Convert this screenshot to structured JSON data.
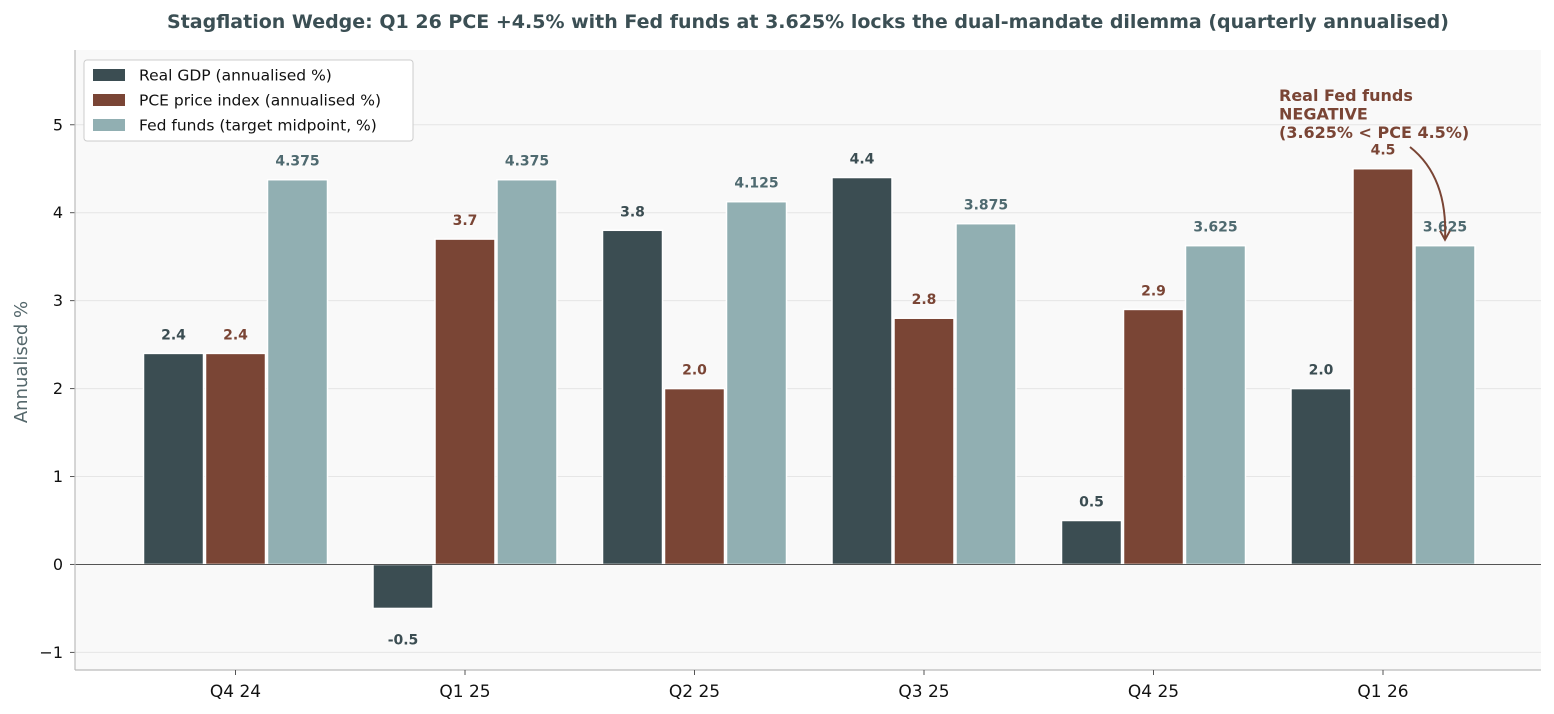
{
  "chart_data": {
    "type": "bar",
    "title": "Stagflation Wedge: Q1 26 PCE +4.5% with Fed funds at 3.625% locks the dual-mandate dilemma  (quarterly annualised)",
    "xlabel": "",
    "ylabel": "Annualised %",
    "ylim": [
      -1.2,
      5.85
    ],
    "yticks": [
      -1,
      0,
      1,
      2,
      3,
      4,
      5
    ],
    "ytick_labels": [
      "−1",
      "0",
      "1",
      "2",
      "3",
      "4",
      "5"
    ],
    "grid": true,
    "legend_position": "top-left",
    "categories": [
      "Q4 24",
      "Q1 25",
      "Q2 25",
      "Q3 25",
      "Q4 25",
      "Q1 26"
    ],
    "series": [
      {
        "name": "Real GDP (annualised %)",
        "color": "#3b4d52",
        "label_color": "#3b4d52",
        "values": [
          2.4,
          -0.5,
          3.8,
          4.4,
          0.5,
          2.0
        ],
        "labels": [
          "2.4",
          "-0.5",
          "3.8",
          "4.4",
          "0.5",
          "2.0"
        ]
      },
      {
        "name": "PCE price index (annualised %)",
        "color": "#7a4535",
        "label_color": "#7a4535",
        "values": [
          2.4,
          null,
          2.0,
          2.8,
          2.9,
          4.5
        ],
        "labels": [
          "2.4",
          "",
          "2.0",
          "2.8",
          "2.9",
          "4.5"
        ],
        "extra_values": [
          null,
          3.7,
          null,
          null,
          null,
          null
        ],
        "extra_labels": [
          "",
          "3.7",
          "",
          "",
          "",
          ""
        ]
      },
      {
        "name": "Fed funds (target midpoint, %)",
        "color": "#91afb2",
        "label_color": "#4f6a70",
        "values": [
          4.375,
          4.375,
          4.125,
          3.875,
          3.625,
          3.625
        ],
        "labels": [
          "4.375",
          "4.375",
          "4.125",
          "3.875",
          "3.625",
          "3.625"
        ]
      }
    ],
    "annotation": {
      "lines": [
        "Real Fed funds",
        "NEGATIVE",
        "(3.625% < PCE 4.5%)"
      ],
      "color": "#7a4535",
      "target_category": "Q1 26",
      "target_series": 2
    }
  }
}
